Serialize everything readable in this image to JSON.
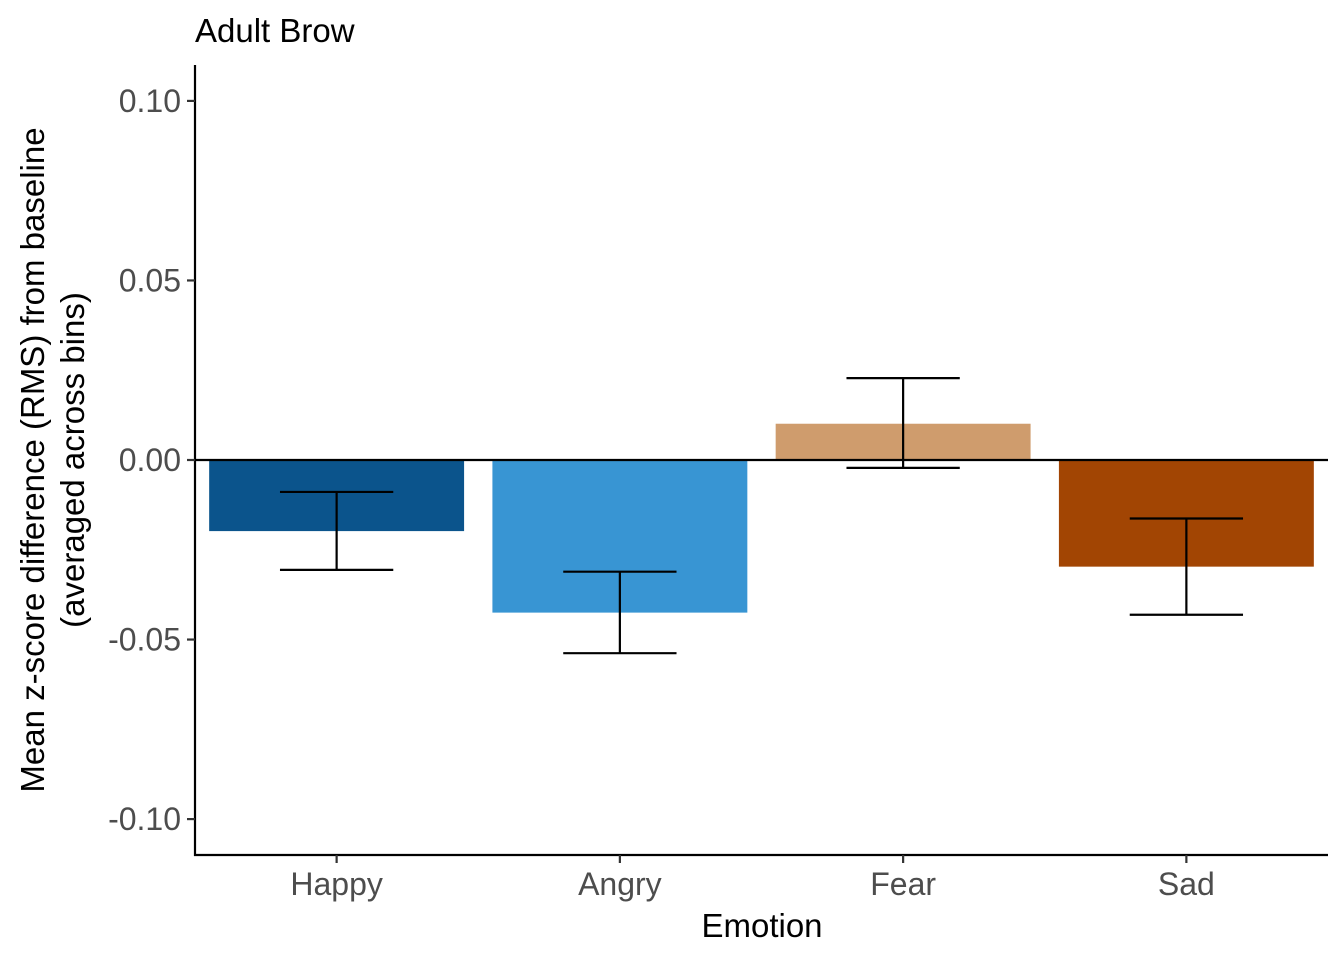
{
  "chart_data": {
    "type": "bar",
    "title": "Adult Brow",
    "xlabel": "Emotion",
    "ylabel_lines": [
      "Mean z-score difference (RMS) from baseline",
      "(averaged across bins)"
    ],
    "categories": [
      "Happy",
      "Angry",
      "Fear",
      "Sad"
    ],
    "values": [
      -0.0198,
      -0.0425,
      0.0101,
      -0.0297
    ],
    "error_upper": [
      -0.0089,
      -0.0311,
      0.0228,
      -0.0163
    ],
    "error_lower": [
      -0.0306,
      -0.0538,
      -0.0022,
      -0.0431
    ],
    "colors": [
      "#0b548c",
      "#3895d3",
      "#cf9c6d",
      "#a24503"
    ],
    "ylim": [
      -0.11,
      0.11
    ],
    "yticks": [
      -0.1,
      -0.05,
      0.0,
      0.05,
      0.1
    ],
    "ytick_labels": [
      "-0.10",
      "-0.05",
      "0.00",
      "0.05",
      "0.10"
    ],
    "zero_line": true,
    "grid": false,
    "legend": "none"
  }
}
